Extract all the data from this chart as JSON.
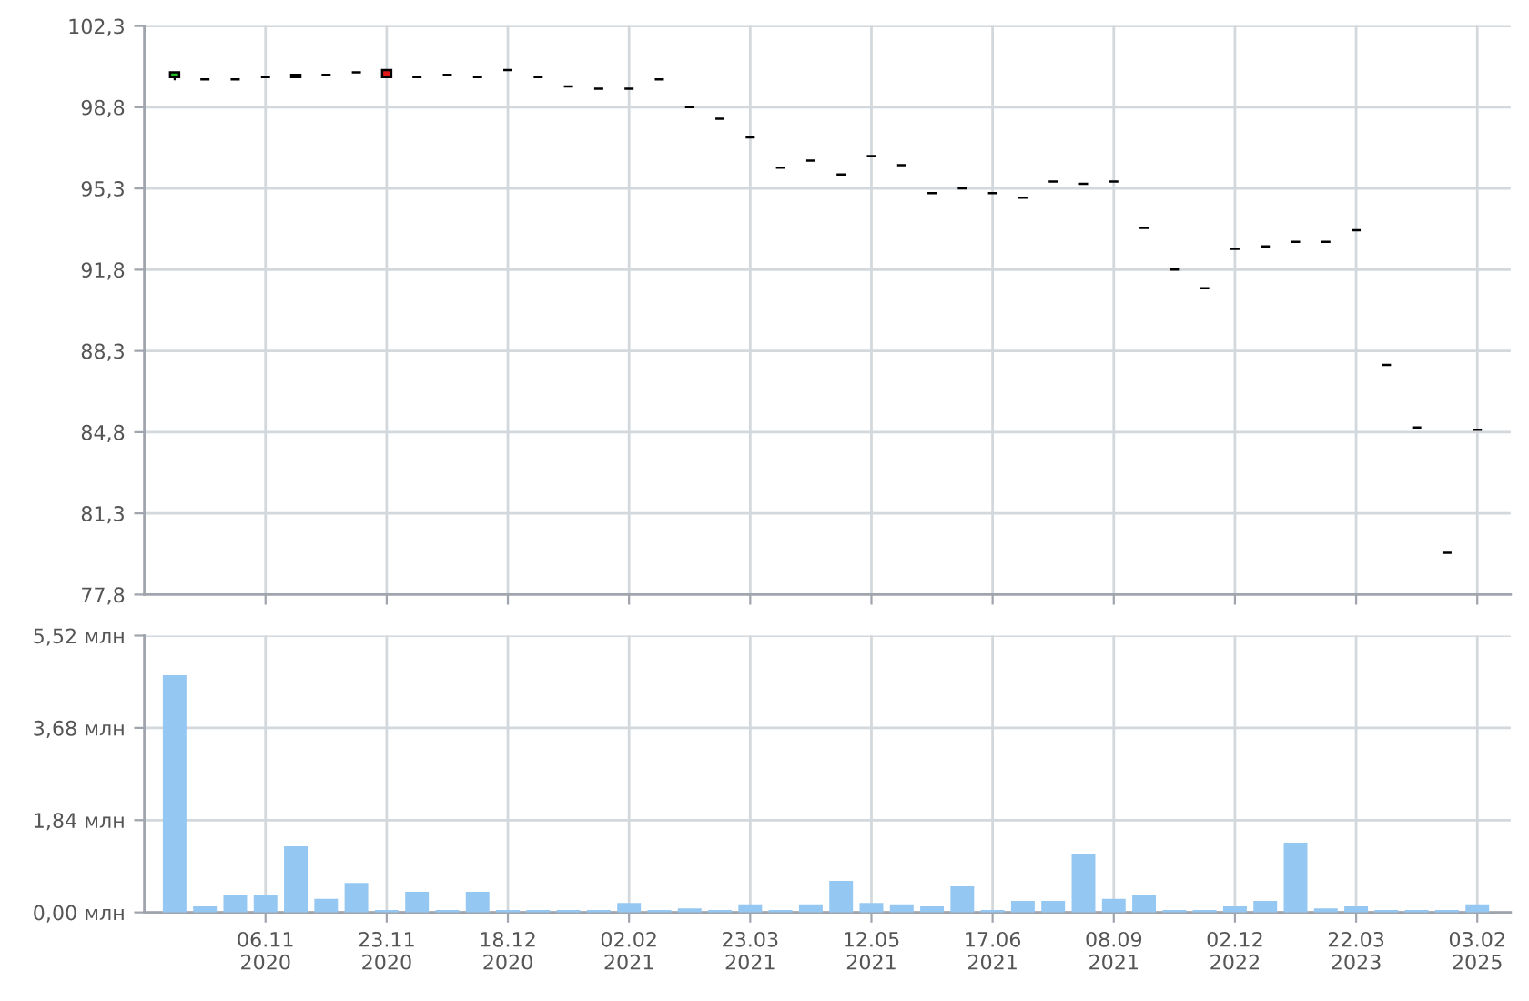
{
  "chart_data": [
    {
      "type": "candlestick",
      "categories": [
        null,
        null,
        null,
        null,
        null,
        null,
        null,
        null,
        null,
        null,
        null,
        null,
        null,
        null,
        null,
        null,
        null,
        null,
        null,
        null,
        null,
        null,
        null,
        null,
        null,
        null,
        null,
        null,
        null,
        null,
        null,
        null,
        null,
        null,
        null,
        null,
        null,
        null,
        null,
        null,
        null,
        null,
        null,
        null
      ],
      "ohlc": [
        [
          100.1,
          100.3,
          100.0,
          100.3
        ],
        [
          100.0,
          100.0,
          100.0,
          100.0
        ],
        [
          100.0,
          100.0,
          100.0,
          100.0
        ],
        [
          100.1,
          100.1,
          100.1,
          100.1
        ],
        [
          100.1,
          100.2,
          100.1,
          100.2
        ],
        [
          100.2,
          100.2,
          100.2,
          100.2
        ],
        [
          100.3,
          100.3,
          100.3,
          100.3
        ],
        [
          100.4,
          100.4,
          100.1,
          100.1
        ],
        [
          100.1,
          100.1,
          100.1,
          100.1
        ],
        [
          100.2,
          100.2,
          100.2,
          100.2
        ],
        [
          100.1,
          100.1,
          100.1,
          100.1
        ],
        [
          100.4,
          100.4,
          100.4,
          100.4
        ],
        [
          100.1,
          100.1,
          100.1,
          100.1
        ],
        [
          99.7,
          99.7,
          99.7,
          99.7
        ],
        [
          99.6,
          99.6,
          99.6,
          99.6
        ],
        [
          99.6,
          99.6,
          99.6,
          99.6
        ],
        [
          100.0,
          100.0,
          100.0,
          100.0
        ],
        [
          98.8,
          98.8,
          98.8,
          98.8
        ],
        [
          98.3,
          98.3,
          98.3,
          98.3
        ],
        [
          97.5,
          97.5,
          97.5,
          97.5
        ],
        [
          96.2,
          96.2,
          96.2,
          96.2
        ],
        [
          96.5,
          96.5,
          96.5,
          96.5
        ],
        [
          95.9,
          95.9,
          95.9,
          95.9
        ],
        [
          96.7,
          96.7,
          96.7,
          96.7
        ],
        [
          96.3,
          96.3,
          96.3,
          96.3
        ],
        [
          95.1,
          95.1,
          95.1,
          95.1
        ],
        [
          95.3,
          95.3,
          95.3,
          95.3
        ],
        [
          95.1,
          95.1,
          95.1,
          95.1
        ],
        [
          94.9,
          94.9,
          94.9,
          94.9
        ],
        [
          95.6,
          95.6,
          95.6,
          95.6
        ],
        [
          95.5,
          95.5,
          95.5,
          95.5
        ],
        [
          95.6,
          95.6,
          95.6,
          95.6
        ],
        [
          93.6,
          93.6,
          93.6,
          93.6
        ],
        [
          91.8,
          91.8,
          91.8,
          91.8
        ],
        [
          91.0,
          91.0,
          91.0,
          91.0
        ],
        [
          92.7,
          92.7,
          92.7,
          92.7
        ],
        [
          92.8,
          92.8,
          92.8,
          92.8
        ],
        [
          93.0,
          93.0,
          93.0,
          93.0
        ],
        [
          93.0,
          93.0,
          93.0,
          93.0
        ],
        [
          93.5,
          93.5,
          93.5,
          93.5
        ],
        [
          87.7,
          87.7,
          87.7,
          87.7
        ],
        [
          85.0,
          85.0,
          85.0,
          85.0
        ],
        [
          79.6,
          79.6,
          79.6,
          79.6
        ],
        [
          84.9,
          84.9,
          84.9,
          84.9
        ]
      ],
      "colors": [
        "#22c022",
        "#000000",
        "#000000",
        "#000000",
        "#000000",
        "#000000",
        "#000000",
        "#e01818",
        "#000000",
        "#000000",
        "#000000",
        "#000000",
        "#000000",
        "#000000",
        "#000000",
        "#000000",
        "#000000",
        "#000000",
        "#000000",
        "#000000",
        "#000000",
        "#000000",
        "#000000",
        "#000000",
        "#000000",
        "#000000",
        "#000000",
        "#000000",
        "#000000",
        "#000000",
        "#000000",
        "#000000",
        "#000000",
        "#000000",
        "#000000",
        "#000000",
        "#000000",
        "#000000",
        "#000000",
        "#000000",
        "#000000",
        "#000000",
        "#000000",
        "#000000"
      ],
      "ylim": [
        77.8,
        102.3
      ],
      "yticks": [
        {
          "value": 77.8,
          "label": "77,8"
        },
        {
          "value": 81.3,
          "label": "81,3"
        },
        {
          "value": 84.8,
          "label": "84,8"
        },
        {
          "value": 88.3,
          "label": "88,3"
        },
        {
          "value": 91.8,
          "label": "91,8"
        },
        {
          "value": 95.3,
          "label": "95,3"
        },
        {
          "value": 98.8,
          "label": "98,8"
        },
        {
          "value": 102.3,
          "label": "102,3"
        }
      ],
      "grid": true,
      "tick_labels": "y"
    },
    {
      "type": "bar",
      "categories": [
        null,
        null,
        null,
        "06.11\n2020",
        null,
        null,
        null,
        "23.11\n2020",
        null,
        null,
        null,
        "18.12\n2020",
        null,
        null,
        null,
        "02.02\n2021",
        null,
        null,
        null,
        "23.03\n2021",
        null,
        null,
        null,
        "12.05\n2021",
        null,
        null,
        null,
        "17.06\n2021",
        null,
        null,
        null,
        "08.09\n2021",
        null,
        null,
        null,
        "02.12\n2022",
        null,
        null,
        null,
        "22.03\n2023",
        null,
        null,
        null,
        "03.02\n2025"
      ],
      "values": [
        4.73,
        0.12,
        0.34,
        0.34,
        1.32,
        0.27,
        0.59,
        0.05,
        0.41,
        0.05,
        0.41,
        0.05,
        0.05,
        0.05,
        0.05,
        0.19,
        0.05,
        0.08,
        0.05,
        0.16,
        0.05,
        0.16,
        0.63,
        0.19,
        0.16,
        0.12,
        0.52,
        0.05,
        0.23,
        0.23,
        1.17,
        0.27,
        0.34,
        0.05,
        0.05,
        0.12,
        0.23,
        1.39,
        0.08,
        0.12,
        0.05,
        0.05,
        0.05,
        0.16
      ],
      "color": "#94c8f2",
      "ylim": [
        0,
        5.52
      ],
      "yticks": [
        {
          "value": 0,
          "label": "0,00 млн"
        },
        {
          "value": 1.84,
          "label": "1,84 млн"
        },
        {
          "value": 3.68,
          "label": "3,68 млн"
        },
        {
          "value": 5.52,
          "label": "5,52 млн"
        }
      ],
      "grid": true
    }
  ]
}
